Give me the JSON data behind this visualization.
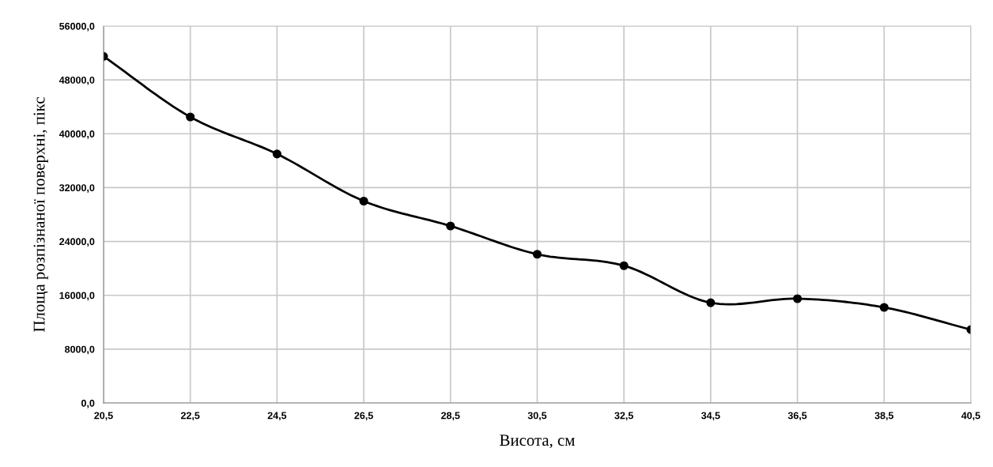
{
  "chart_data": {
    "type": "line",
    "xlabel": "Висота, см",
    "ylabel": "Площа розпізнаної поверхні, пікс",
    "x": [
      20.5,
      22.5,
      24.5,
      26.5,
      28.5,
      30.5,
      32.5,
      34.5,
      36.5,
      38.5,
      40.5
    ],
    "series": [
      {
        "color": "#000000",
        "values": [
          51500,
          42500,
          37000,
          30000,
          26300,
          22100,
          20400,
          14900,
          15500,
          14200,
          10900
        ]
      }
    ],
    "xlim": [
      20.5,
      40.5
    ],
    "xticks": [
      {
        "value": 20.5,
        "label": "20,5"
      },
      {
        "value": 22.5,
        "label": "22,5"
      },
      {
        "value": 24.5,
        "label": "24,5"
      },
      {
        "value": 26.5,
        "label": "26,5"
      },
      {
        "value": 28.5,
        "label": "28,5"
      },
      {
        "value": 30.5,
        "label": "30,5"
      },
      {
        "value": 32.5,
        "label": "32,5"
      },
      {
        "value": 34.5,
        "label": "34,5"
      },
      {
        "value": 36.5,
        "label": "36,5"
      },
      {
        "value": 38.5,
        "label": "38,5"
      },
      {
        "value": 40.5,
        "label": "40,5"
      }
    ],
    "ylim": [
      0,
      56000
    ],
    "yticks": [
      {
        "value": 0,
        "label": "0,0"
      },
      {
        "value": 8000,
        "label": "8000,0"
      },
      {
        "value": 16000,
        "label": "16000,0"
      },
      {
        "value": 24000,
        "label": "24000,0"
      },
      {
        "value": 32000,
        "label": "32000,0"
      },
      {
        "value": 40000,
        "label": "40000,0"
      },
      {
        "value": 48000,
        "label": "48000,0"
      },
      {
        "value": 56000,
        "label": "56000,0"
      }
    ],
    "grid": true,
    "marker": "circle",
    "line_style": "solid",
    "legend": false
  }
}
